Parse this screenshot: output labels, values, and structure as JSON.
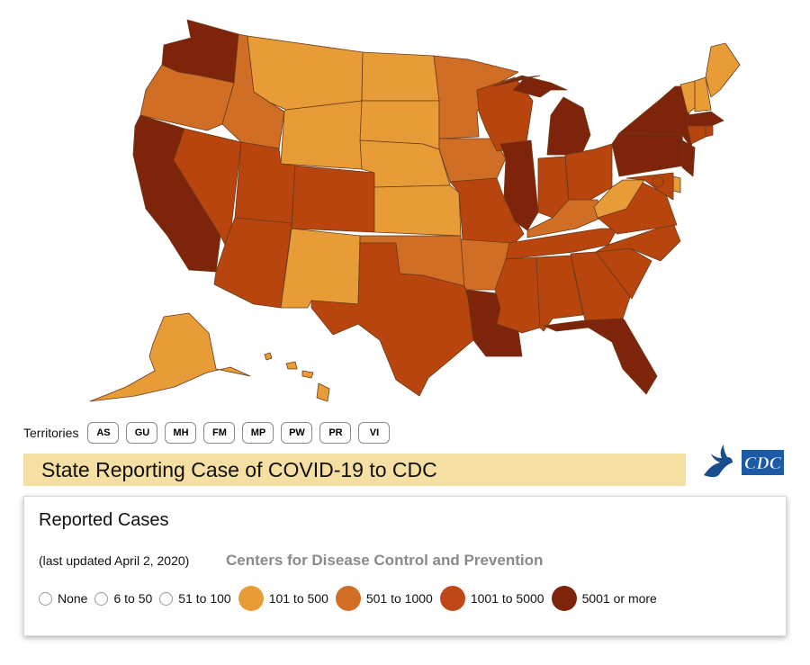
{
  "colors": {
    "c1": "#e89c38",
    "c2": "#d06e25",
    "c3": "#b8450e",
    "c4": "#7e240a",
    "none": "#ffffff"
  },
  "map": {
    "states": [
      {
        "id": "WA",
        "level": "c4"
      },
      {
        "id": "OR",
        "level": "c2"
      },
      {
        "id": "CA",
        "level": "c4"
      },
      {
        "id": "NV",
        "level": "c3"
      },
      {
        "id": "ID",
        "level": "c2"
      },
      {
        "id": "MT",
        "level": "c1"
      },
      {
        "id": "WY",
        "level": "c1"
      },
      {
        "id": "UT",
        "level": "c3"
      },
      {
        "id": "AZ",
        "level": "c3"
      },
      {
        "id": "CO",
        "level": "c3"
      },
      {
        "id": "NM",
        "level": "c1"
      },
      {
        "id": "ND",
        "level": "c1"
      },
      {
        "id": "SD",
        "level": "c1"
      },
      {
        "id": "NE",
        "level": "c1"
      },
      {
        "id": "KS",
        "level": "c1"
      },
      {
        "id": "OK",
        "level": "c2"
      },
      {
        "id": "TX",
        "level": "c3"
      },
      {
        "id": "MN",
        "level": "c2"
      },
      {
        "id": "IA",
        "level": "c2"
      },
      {
        "id": "MO",
        "level": "c3"
      },
      {
        "id": "AR",
        "level": "c2"
      },
      {
        "id": "LA",
        "level": "c4"
      },
      {
        "id": "WI",
        "level": "c3"
      },
      {
        "id": "IL",
        "level": "c4"
      },
      {
        "id": "MI",
        "level": "c4"
      },
      {
        "id": "IN",
        "level": "c3"
      },
      {
        "id": "OH",
        "level": "c3"
      },
      {
        "id": "KY",
        "level": "c2"
      },
      {
        "id": "TN",
        "level": "c3"
      },
      {
        "id": "MS",
        "level": "c3"
      },
      {
        "id": "AL",
        "level": "c3"
      },
      {
        "id": "GA",
        "level": "c3"
      },
      {
        "id": "FL",
        "level": "c4"
      },
      {
        "id": "SC",
        "level": "c3"
      },
      {
        "id": "NC",
        "level": "c3"
      },
      {
        "id": "VA",
        "level": "c3"
      },
      {
        "id": "WV",
        "level": "c1"
      },
      {
        "id": "PA",
        "level": "c4"
      },
      {
        "id": "NY",
        "level": "c4"
      },
      {
        "id": "VT",
        "level": "c1"
      },
      {
        "id": "NH",
        "level": "c1"
      },
      {
        "id": "ME",
        "level": "c1"
      },
      {
        "id": "MA",
        "level": "c4"
      },
      {
        "id": "CT",
        "level": "c3"
      },
      {
        "id": "RI",
        "level": "c3"
      },
      {
        "id": "NJ",
        "level": "c4"
      },
      {
        "id": "DE",
        "level": "c1"
      },
      {
        "id": "MD",
        "level": "c3"
      },
      {
        "id": "DC",
        "level": "c3"
      },
      {
        "id": "AK",
        "level": "c1"
      },
      {
        "id": "HI",
        "level": "c1"
      }
    ]
  },
  "territories": {
    "label": "Territories",
    "buttons": [
      "AS",
      "GU",
      "MH",
      "FM",
      "MP",
      "PW",
      "PR",
      "VI"
    ]
  },
  "title": "State Reporting Case of COVID-19 to CDC",
  "logo": {
    "text": "CDC",
    "icons": [
      "hhs-eagle-icon",
      "cdc-logo-icon"
    ]
  },
  "legend": {
    "title": "Reported Cases",
    "updated": "(last updated April 2, 2020)",
    "org": "Centers for Disease Control and Prevention",
    "items": [
      {
        "label": "None",
        "style": "empty"
      },
      {
        "label": "6 to 50",
        "style": "empty"
      },
      {
        "label": "51 to 100",
        "style": "empty"
      },
      {
        "label": "101 to 500",
        "style": "filled",
        "color": "#e89c38"
      },
      {
        "label": "501 to 1000",
        "style": "filled",
        "color": "#d06e25"
      },
      {
        "label": "1001 to 5000",
        "style": "filled",
        "color": "#c04818"
      },
      {
        "label": "5001 or more",
        "style": "filled",
        "color": "#7e240a"
      }
    ]
  }
}
